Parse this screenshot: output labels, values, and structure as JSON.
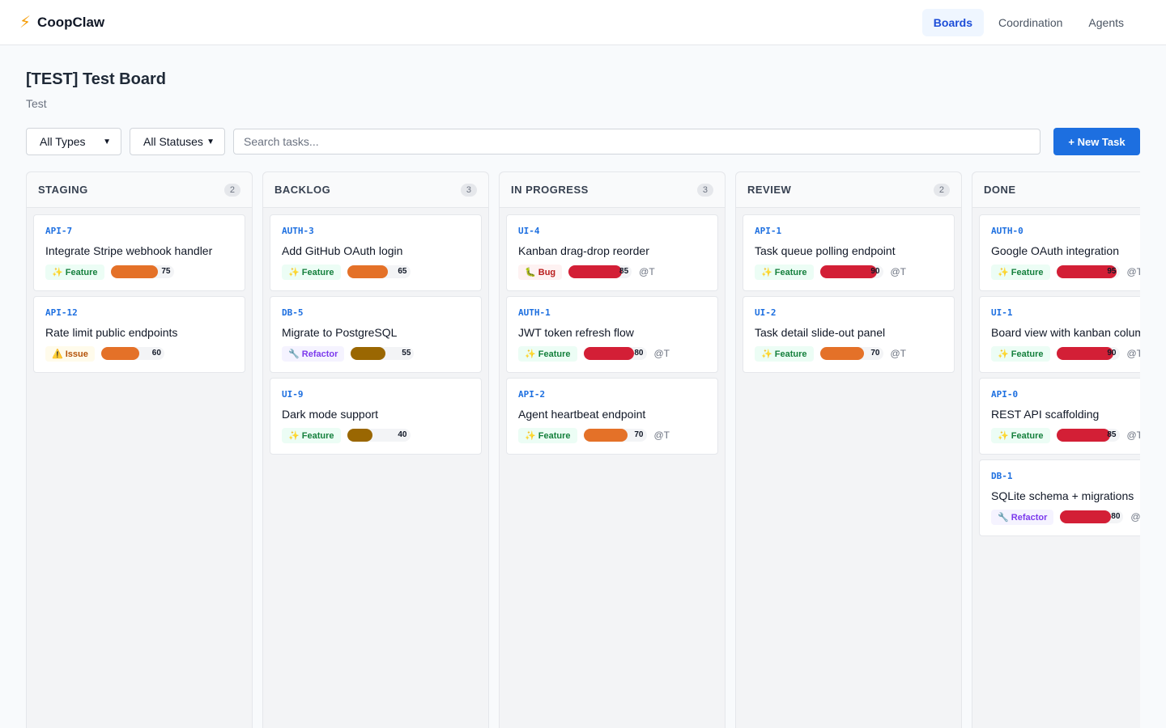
{
  "app": {
    "brand_icon": "⚡",
    "brand_name": "CoopClaw"
  },
  "nav": [
    {
      "label": "Boards",
      "active": true
    },
    {
      "label": "Coordination",
      "active": false
    },
    {
      "label": "Agents",
      "active": false
    }
  ],
  "board": {
    "title": "[TEST] Test Board",
    "subtitle": "Test"
  },
  "filters": {
    "type_selected": "All Types",
    "status_selected": "All Statuses",
    "search_placeholder": "Search tasks...",
    "new_task_label": "+ New Task"
  },
  "colors": {
    "accent": "#1d6fe0",
    "priority_high": "#d31f36",
    "priority_medium": "#e47128",
    "priority_low": "#9a6702"
  },
  "columns": [
    {
      "title": "STAGING",
      "count": "2",
      "cards": [
        {
          "id": "API-7",
          "title": "Integrate Stripe webhook handler",
          "type": "✨ Feature",
          "type_class": "feature",
          "priority": 75,
          "priority_level": "medium",
          "assignee": ""
        },
        {
          "id": "API-12",
          "title": "Rate limit public endpoints",
          "type": "⚠️ Issue",
          "type_class": "issue",
          "priority": 60,
          "priority_level": "medium",
          "assignee": ""
        }
      ]
    },
    {
      "title": "BACKLOG",
      "count": "3",
      "cards": [
        {
          "id": "AUTH-3",
          "title": "Add GitHub OAuth login",
          "type": "✨ Feature",
          "type_class": "feature",
          "priority": 65,
          "priority_level": "medium",
          "assignee": ""
        },
        {
          "id": "DB-5",
          "title": "Migrate to PostgreSQL",
          "type": "🔧 Refactor",
          "type_class": "refactor",
          "priority": 55,
          "priority_level": "low",
          "assignee": ""
        },
        {
          "id": "UI-9",
          "title": "Dark mode support",
          "type": "✨ Feature",
          "type_class": "feature",
          "priority": 40,
          "priority_level": "low",
          "assignee": ""
        }
      ]
    },
    {
      "title": "IN PROGRESS",
      "count": "3",
      "cards": [
        {
          "id": "UI-4",
          "title": "Kanban drag-drop reorder",
          "type": "🐛 Bug",
          "type_class": "bug",
          "priority": 85,
          "priority_level": "high",
          "assignee": "@T"
        },
        {
          "id": "AUTH-1",
          "title": "JWT token refresh flow",
          "type": "✨ Feature",
          "type_class": "feature",
          "priority": 80,
          "priority_level": "high",
          "assignee": "@T"
        },
        {
          "id": "API-2",
          "title": "Agent heartbeat endpoint",
          "type": "✨ Feature",
          "type_class": "feature",
          "priority": 70,
          "priority_level": "medium",
          "assignee": "@T"
        }
      ]
    },
    {
      "title": "REVIEW",
      "count": "2",
      "cards": [
        {
          "id": "API-1",
          "title": "Task queue polling endpoint",
          "type": "✨ Feature",
          "type_class": "feature",
          "priority": 90,
          "priority_level": "high",
          "assignee": "@T"
        },
        {
          "id": "UI-2",
          "title": "Task detail slide-out panel",
          "type": "✨ Feature",
          "type_class": "feature",
          "priority": 70,
          "priority_level": "medium",
          "assignee": "@T"
        }
      ]
    },
    {
      "title": "DONE",
      "count": "",
      "cards": [
        {
          "id": "AUTH-0",
          "title": "Google OAuth integration",
          "type": "✨ Feature",
          "type_class": "feature",
          "priority": 95,
          "priority_level": "high",
          "assignee": "@T"
        },
        {
          "id": "UI-1",
          "title": "Board view with kanban columns",
          "type": "✨ Feature",
          "type_class": "feature",
          "priority": 90,
          "priority_level": "high",
          "assignee": "@T"
        },
        {
          "id": "API-0",
          "title": "REST API scaffolding",
          "type": "✨ Feature",
          "type_class": "feature",
          "priority": 85,
          "priority_level": "high",
          "assignee": "@T"
        },
        {
          "id": "DB-1",
          "title": "SQLite schema + migrations",
          "type": "🔧 Refactor",
          "type_class": "refactor",
          "priority": 80,
          "priority_level": "high",
          "assignee": "@T"
        }
      ]
    }
  ]
}
